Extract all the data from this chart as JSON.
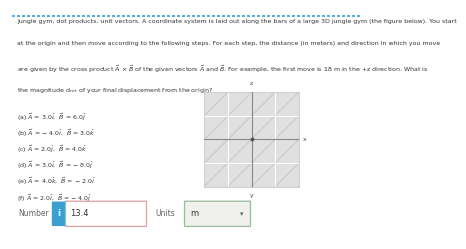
{
  "problem_line1": "Jungle gym, dot products, unit vectors. A coordinate system is laid out along the bars of a large 3D jungle gym (the figure below). You start",
  "problem_line2": "at the origin and then move according to the following steps. For each step, the distance (in meters) and direction in which you move",
  "problem_line3": "are given by the cross product $\\vec{A}$ × $\\vec{B}$ of the given vectors $\\vec{A}$ and $\\vec{B}$. For example, the first move is 18 m in the +z direction. What is",
  "problem_line4": "the magnitude d$_{net}$ of your final displacement from the origin?",
  "steps": [
    "(a) $\\vec{A}$ = 3.0$\\hat{i}$,  $\\vec{B}$ = 6.0$\\hat{j}$",
    "(b) $\\vec{A}$ = − 4.0$\\hat{i}$,  $\\vec{B}$ = 3.0$\\hat{k}$",
    "(c) $\\vec{A}$ = 2.0$\\hat{j}$,  $\\vec{B}$ = 4.0$\\hat{k}$",
    "(d) $\\vec{A}$ = 3.0$\\hat{i}$,  $\\vec{B}$ = − 8.0$\\hat{j}$",
    "(e) $\\vec{A}$ = 4.0$\\hat{k}$,  $\\vec{B}$ = − 2.0$\\hat{i}$",
    "(f) $\\vec{A}$ = 2.0$\\hat{i}$,  $\\vec{B}$ = − 4.0$\\hat{j}$"
  ],
  "number_label": "Number",
  "number_value": "13.4",
  "units_label": "Units",
  "units_value": "m",
  "bg_color": "#ffffff",
  "border_color": "#5aafe0",
  "text_color": "#333333",
  "plot_bg": "#e0e0e0",
  "grid_color": "#ffffff",
  "axis_color": "#888888",
  "diagonal_color": "#bbbbbb",
  "input_text_color": "#444444",
  "number_border": "#d9a0a0",
  "units_border": "#99bb99",
  "info_btn_color": "#3b9fd1"
}
